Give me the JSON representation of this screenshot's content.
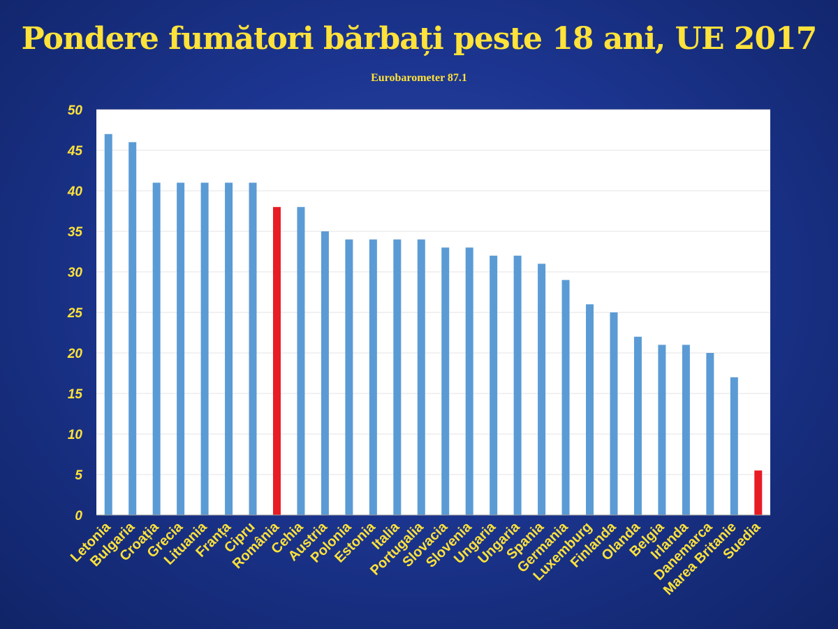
{
  "title": "Pondere fumători bărbați peste 18 ani, UE 2017",
  "subtitle": "Eurobarometer 87.1",
  "colors": {
    "bar_default": "#5b9bd5",
    "bar_highlight": "#e81c24",
    "text": "#ffe23a",
    "plot_bg": "#ffffff",
    "gridline": "#e3e3e3"
  },
  "chart_data": {
    "type": "bar",
    "categories": [
      "Letonia",
      "Bulgaria",
      "Croația",
      "Grecia",
      "Lituania",
      "Franța",
      "Cipru",
      "România",
      "Cehia",
      "Austria",
      "Polonia",
      "Estonia",
      "Italia",
      "Portugalia",
      "Slovacia",
      "Slovenia",
      "Ungaria",
      "Ungaria",
      "Spania",
      "Germania",
      "Luxemburg",
      "Finlanda",
      "Olanda",
      "Belgia",
      "Irlanda",
      "Danemarca",
      "Marea Britanie",
      "Suedia"
    ],
    "values": [
      47,
      46,
      41,
      41,
      41,
      41,
      41,
      38,
      38,
      35,
      34,
      34,
      34,
      34,
      33,
      33,
      32,
      32,
      31,
      29,
      26,
      25,
      22,
      21,
      21,
      20,
      17,
      5.5
    ],
    "highlight": [
      "România",
      "Suedia"
    ],
    "ylim": [
      0,
      50
    ],
    "yticks": [
      0,
      5,
      10,
      15,
      20,
      25,
      30,
      35,
      40,
      45,
      50
    ],
    "grid": true,
    "legend": "none"
  }
}
